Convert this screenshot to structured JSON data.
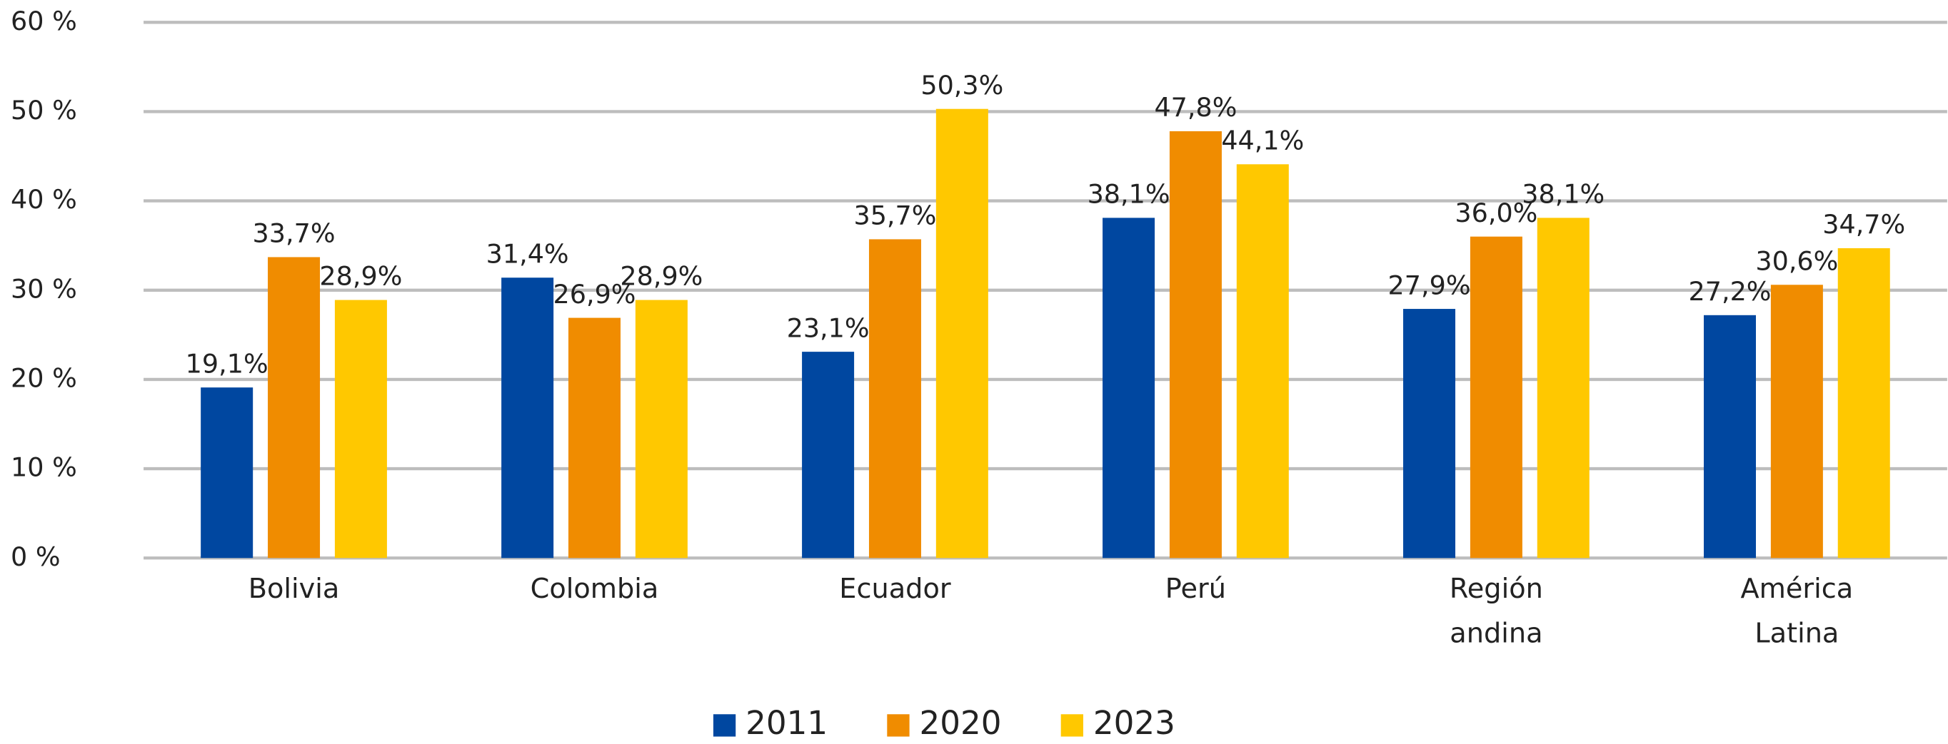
{
  "chart_data": {
    "type": "bar",
    "categories": [
      "Bolivia",
      "Colombia",
      "Ecuador",
      "Perú",
      "Región andina",
      "América Latina"
    ],
    "series": [
      {
        "name": "2011",
        "color": "#0047a0",
        "values": [
          19.1,
          31.4,
          23.1,
          38.1,
          27.9,
          27.2
        ],
        "value_labels": [
          "19,1%",
          "31,4%",
          "23,1%",
          "38,1%",
          "27,9%",
          "27,2%"
        ]
      },
      {
        "name": "2020",
        "color": "#f08c00",
        "values": [
          33.7,
          26.9,
          35.7,
          47.8,
          36.0,
          30.6
        ],
        "value_labels": [
          "33,7%",
          "26,9%",
          "35,7%",
          "47,8%",
          "36,0%",
          "30,6%"
        ]
      },
      {
        "name": "2023",
        "color": "#ffc800",
        "values": [
          28.9,
          28.9,
          50.3,
          44.1,
          38.1,
          34.7
        ],
        "value_labels": [
          "28,9%",
          "28,9%",
          "50,3%",
          "44,1%",
          "38,1%",
          "34,7%"
        ]
      }
    ],
    "ylim": [
      0,
      60
    ],
    "yticks": [
      {
        "value": 0,
        "label": "0 %"
      },
      {
        "value": 10,
        "label": "10 %"
      },
      {
        "value": 20,
        "label": "20 %"
      },
      {
        "value": 30,
        "label": "30 %"
      },
      {
        "value": 40,
        "label": "40 %"
      },
      {
        "value": 50,
        "label": "50 %"
      },
      {
        "value": 60,
        "label": "60 %"
      }
    ],
    "grid": true,
    "legend": "bottom"
  }
}
